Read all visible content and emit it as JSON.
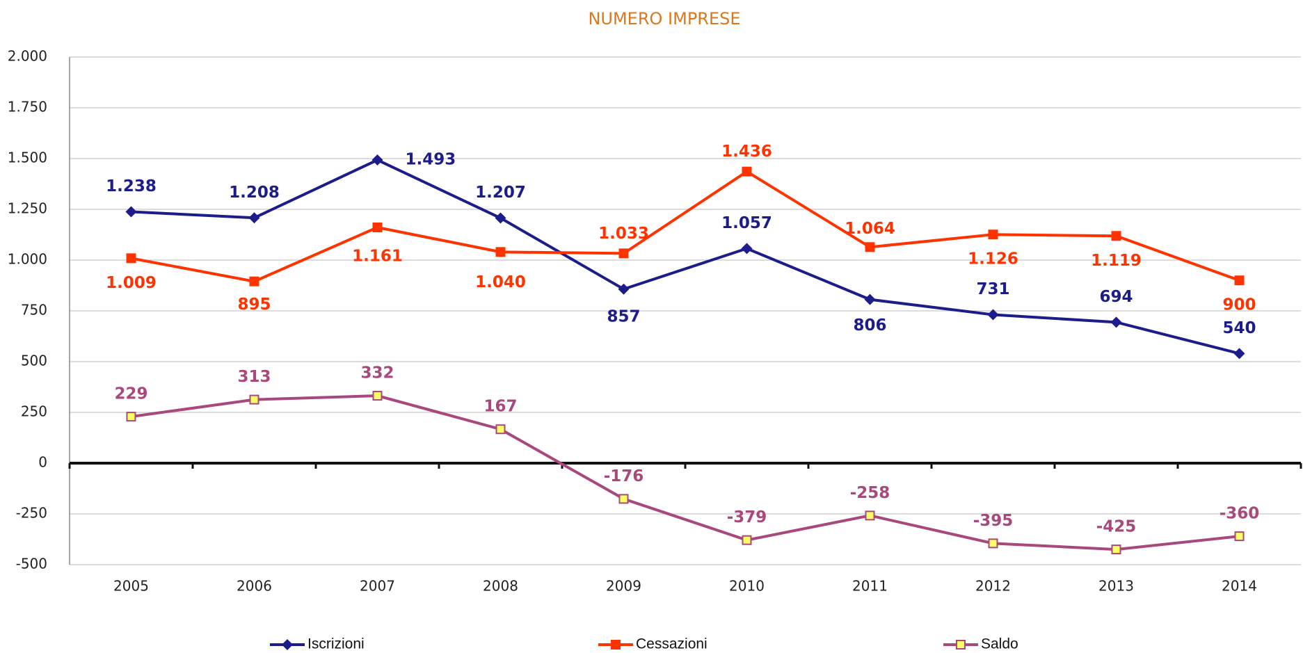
{
  "chart_data": {
    "type": "line",
    "title": "NUMERO IMPRESE",
    "categories": [
      "2005",
      "2006",
      "2007",
      "2008",
      "2009",
      "2010",
      "2011",
      "2012",
      "2013",
      "2014"
    ],
    "series": [
      {
        "name": "Iscrizioni",
        "color": "#1c1c8a",
        "marker": "diamond",
        "values": [
          1238,
          1208,
          1493,
          1207,
          857,
          1057,
          806,
          731,
          694,
          540
        ],
        "value_labels": [
          "1.238",
          "1.208",
          "1.493",
          "1.207",
          "857",
          "1.057",
          "806",
          "731",
          "694",
          "540"
        ]
      },
      {
        "name": "Cessazioni",
        "color": "#ff3300",
        "marker": "square",
        "values": [
          1009,
          895,
          1161,
          1040,
          1033,
          1436,
          1064,
          1126,
          1119,
          900
        ],
        "value_labels": [
          "1.009",
          "895",
          "1.161",
          "1.040",
          "1.033",
          "1.436",
          "1.064",
          "1.126",
          "1.119",
          "900"
        ]
      },
      {
        "name": "Saldo",
        "color": "#a8487c",
        "marker": "square-yellow",
        "values": [
          229,
          313,
          332,
          167,
          -176,
          -379,
          -258,
          -395,
          -425,
          -360
        ]
      }
    ],
    "ylim": [
      -500,
      2000
    ],
    "yticks": [
      {
        "value": -500,
        "label": "-500"
      },
      {
        "value": -250,
        "label": "-250"
      },
      0,
      250,
      500,
      750,
      {
        "value": 1000,
        "label": "1.000"
      },
      {
        "value": 1250,
        "label": "1.250"
      },
      {
        "value": 1500,
        "label": "1.500"
      },
      {
        "value": 1750,
        "label": "1.750"
      },
      {
        "value": 2000,
        "label": "2.000"
      }
    ],
    "grid": true,
    "legend": "bottom"
  }
}
